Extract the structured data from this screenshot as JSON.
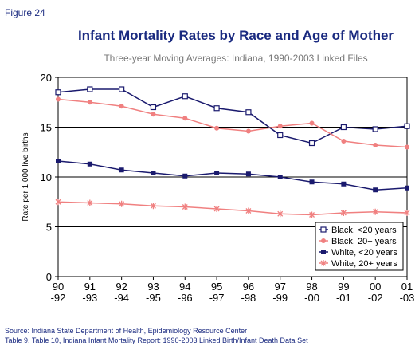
{
  "figure_label": "Figure 24",
  "chart_data": {
    "type": "line",
    "title": "Infant Mortality Rates by Race and Age of Mother",
    "subtitle": "Three-year Moving Averages: Indiana, 1990-2003 Linked Files",
    "y_label": "Rate per 1,000 live births",
    "categories": [
      "90\n-92",
      "91\n-93",
      "92\n-94",
      "93\n-95",
      "94\n-96",
      "95\n-97",
      "96\n-98",
      "97\n-99",
      "98\n-00",
      "99\n-01",
      "00\n-02",
      "01\n-03"
    ],
    "series": [
      {
        "name": "Black, <20 years",
        "color": "#1a1a6e",
        "marker": "open-square",
        "values": [
          18.5,
          18.8,
          18.8,
          17.0,
          18.1,
          16.9,
          16.5,
          14.2,
          13.4,
          15.0,
          14.8,
          15.1
        ]
      },
      {
        "name": "Black, 20+ years",
        "color": "#f08080",
        "marker": "circle",
        "values": [
          17.8,
          17.5,
          17.1,
          16.3,
          15.9,
          14.9,
          14.6,
          15.1,
          15.4,
          13.6,
          13.2,
          13.0
        ]
      },
      {
        "name": "White, <20 years",
        "color": "#1a1a6e",
        "marker": "square",
        "values": [
          11.6,
          11.3,
          10.7,
          10.4,
          10.1,
          10.4,
          10.3,
          10.0,
          9.5,
          9.3,
          8.7,
          8.9
        ]
      },
      {
        "name": "White, 20+ years",
        "color": "#f08080",
        "marker": "star",
        "values": [
          7.5,
          7.4,
          7.3,
          7.1,
          7.0,
          6.8,
          6.6,
          6.3,
          6.2,
          6.4,
          6.5,
          6.4
        ]
      }
    ],
    "ylim": [
      0,
      20
    ],
    "yticks": [
      0,
      5,
      10,
      15,
      20
    ],
    "grid": true,
    "legend": "lower-right"
  },
  "source": [
    "Source: Indiana State Department of Health, Epidemiology Resource Center",
    "Table 9, Table 10, Indiana Infant Mortality Report: 1990-2003 Linked Birth/Infant Death Data Set"
  ]
}
